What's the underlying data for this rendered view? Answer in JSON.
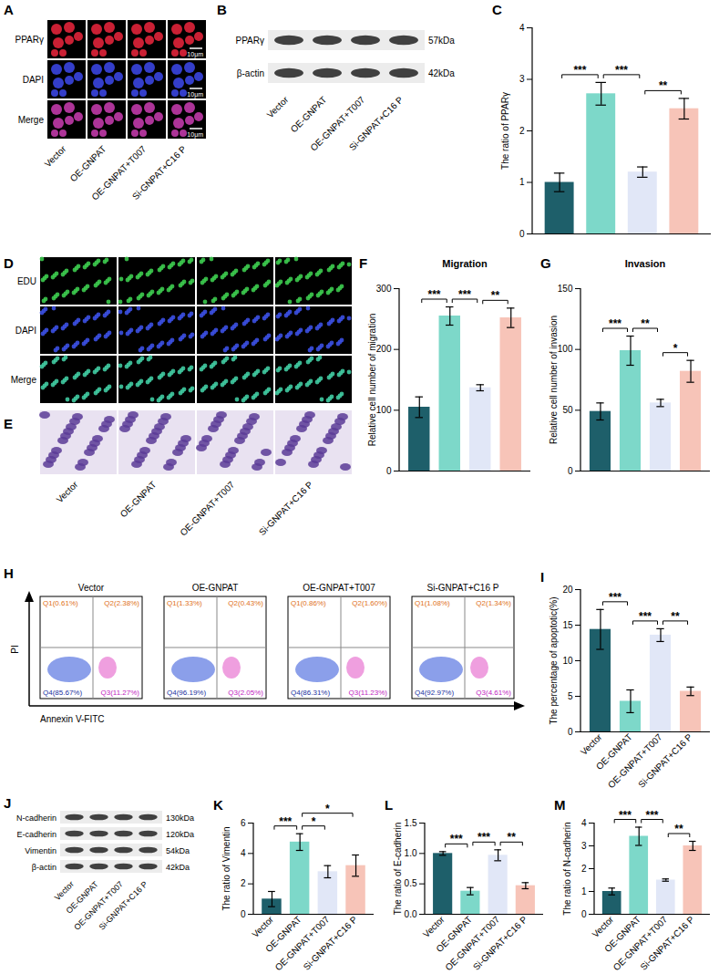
{
  "figure": {
    "groups": [
      "Vector",
      "OE-GNPAT",
      "OE-GNPAT+T007",
      "Si-GNPAT+C16 P"
    ],
    "A": {
      "panel": "A",
      "rows": [
        "PPARγ",
        "DAPI",
        "Merge"
      ],
      "scale_bar": "10μm"
    },
    "B": {
      "panel": "B",
      "blots": [
        {
          "name": "PPARγ",
          "size": "57kDa"
        },
        {
          "name": "β-actin",
          "size": "42kDa"
        }
      ]
    },
    "D": {
      "panel": "D",
      "rows": [
        "EDU",
        "DAPI",
        "Merge"
      ]
    },
    "E": {
      "panel": "E"
    },
    "H": {
      "panel": "H",
      "x_label": "Annexin V-FITC",
      "y_label": "PI",
      "plots": [
        {
          "title": "Vector",
          "quadrants": [
            "Q1(0.61%)",
            "Q2(2.38%)",
            "Q3(11.27%)",
            "Q4(85.67%)"
          ]
        },
        {
          "title": "OE-GNPAT",
          "quadrants": [
            "Q1(1.33%)",
            "Q2(0.43%)",
            "Q3(2.05%)",
            "Q4(96.19%)"
          ]
        },
        {
          "title": "OE-GNPAT+T007",
          "quadrants": [
            "Q1(0.86%)",
            "Q2(1.60%)",
            "Q3(11.23%)",
            "Q4(86.31%)"
          ]
        },
        {
          "title": "Si-GNPAT+C16 P",
          "quadrants": [
            "Q1(1.08%)",
            "Q2(1.34%)",
            "Q3(4.61%)",
            "Q4(92.97%)"
          ]
        }
      ]
    },
    "J": {
      "panel": "J",
      "blots": [
        {
          "name": "N-cadherin",
          "size": "130kDa"
        },
        {
          "name": "E-cadherin",
          "size": "120kDa"
        },
        {
          "name": "Vimentin",
          "size": "54kDa"
        },
        {
          "name": "β-actin",
          "size": "42kDa"
        }
      ]
    }
  },
  "chart_data": [
    {
      "panel": "C",
      "type": "bar",
      "y_label": "The ratio of PPARγ",
      "categories": [
        "Vector",
        "OE-GNPAT",
        "OE-GNPAT+T007",
        "Si-GNPAT+C16 P"
      ],
      "values": [
        1.0,
        2.72,
        1.2,
        2.43
      ],
      "errors": [
        0.18,
        0.22,
        0.1,
        0.2
      ],
      "colors": [
        "#1e5f6a",
        "#7dd8c9",
        "#e1e7f7",
        "#f7c4b8"
      ],
      "ylim": [
        0,
        4
      ],
      "yticks": [
        0,
        1,
        2,
        3,
        4
      ],
      "tick_labels": "y",
      "significance": [
        {
          "groups": [
            "Vector",
            "OE-GNPAT"
          ],
          "label": "***"
        },
        {
          "groups": [
            "OE-GNPAT",
            "OE-GNPAT+T007"
          ],
          "label": "***"
        },
        {
          "groups": [
            "OE-GNPAT+T007",
            "Si-GNPAT+C16 P"
          ],
          "label": "**"
        }
      ]
    },
    {
      "panel": "F",
      "type": "bar",
      "title": "Migration",
      "y_label": "Relative cell number of migration",
      "categories": [
        "Vector",
        "OE-GNPAT",
        "OE-GNPAT+T007",
        "Si-GNPAT+C16 P"
      ],
      "values": [
        105,
        255,
        137,
        252
      ],
      "errors": [
        17,
        15,
        5,
        16
      ],
      "colors": [
        "#1e5f6a",
        "#7dd8c9",
        "#e1e7f7",
        "#f7c4b8"
      ],
      "ylim": [
        0,
        300
      ],
      "yticks": [
        0,
        100,
        200,
        300
      ],
      "tick_labels": "y",
      "significance": [
        {
          "groups": [
            "Vector",
            "OE-GNPAT"
          ],
          "label": "***"
        },
        {
          "groups": [
            "OE-GNPAT",
            "OE-GNPAT+T007"
          ],
          "label": "***"
        },
        {
          "groups": [
            "OE-GNPAT+T007",
            "Si-GNPAT+C16 P"
          ],
          "label": "**"
        }
      ]
    },
    {
      "panel": "G",
      "type": "bar",
      "title": "Invasion",
      "y_label": "Relative cell number of invasion",
      "categories": [
        "Vector",
        "OE-GNPAT",
        "OE-GNPAT+T007",
        "Si-GNPAT+C16 P"
      ],
      "values": [
        49,
        99,
        56,
        82
      ],
      "errors": [
        7,
        12,
        3,
        9
      ],
      "colors": [
        "#1e5f6a",
        "#7dd8c9",
        "#e1e7f7",
        "#f7c4b8"
      ],
      "ylim": [
        0,
        150
      ],
      "yticks": [
        0,
        50,
        100,
        150
      ],
      "tick_labels": "y",
      "significance": [
        {
          "groups": [
            "Vector",
            "OE-GNPAT"
          ],
          "label": "***"
        },
        {
          "groups": [
            "OE-GNPAT",
            "OE-GNPAT+T007"
          ],
          "label": "**"
        },
        {
          "groups": [
            "OE-GNPAT+T007",
            "Si-GNPAT+C16 P"
          ],
          "label": "*"
        }
      ]
    },
    {
      "panel": "I",
      "type": "bar",
      "y_label": "The percentage of apoptotic(%)",
      "categories": [
        "Vector",
        "OE-GNPAT",
        "OE-GNPAT+T007",
        "Si-GNPAT+C16 P"
      ],
      "values": [
        14.4,
        4.3,
        13.6,
        5.7
      ],
      "errors": [
        2.8,
        1.6,
        0.9,
        0.6
      ],
      "colors": [
        "#1e5f6a",
        "#7dd8c9",
        "#e1e7f7",
        "#f7c4b8"
      ],
      "ylim": [
        0,
        20
      ],
      "yticks": [
        0,
        5,
        10,
        15,
        20
      ],
      "significance": [
        {
          "groups": [
            "Vector",
            "OE-GNPAT"
          ],
          "label": "***"
        },
        {
          "groups": [
            "OE-GNPAT",
            "OE-GNPAT+T007"
          ],
          "label": "***"
        },
        {
          "groups": [
            "OE-GNPAT+T007",
            "Si-GNPAT+C16 P"
          ],
          "label": "**"
        }
      ]
    },
    {
      "panel": "K",
      "type": "bar",
      "y_label": "The ratio of Vimentin",
      "categories": [
        "Vector",
        "OE-GNPAT",
        "OE-GNPAT+T007",
        "Si-GNPAT+C16 P"
      ],
      "values": [
        1.0,
        4.75,
        2.8,
        3.2
      ],
      "errors": [
        0.5,
        0.55,
        0.4,
        0.7
      ],
      "colors": [
        "#1e5f6a",
        "#7dd8c9",
        "#e1e7f7",
        "#f7c4b8"
      ],
      "ylim": [
        0,
        6
      ],
      "yticks": [
        0,
        2,
        4,
        6
      ],
      "significance": [
        {
          "groups": [
            "Vector",
            "OE-GNPAT"
          ],
          "label": "***"
        },
        {
          "groups": [
            "OE-GNPAT",
            "OE-GNPAT+T007"
          ],
          "label": "*"
        },
        {
          "groups": [
            "OE-GNPAT",
            "Si-GNPAT+C16 P"
          ],
          "label": "*"
        }
      ]
    },
    {
      "panel": "L",
      "type": "bar",
      "y_label": "The ratio of E-cadherin",
      "categories": [
        "Vector",
        "OE-GNPAT",
        "OE-GNPAT+T007",
        "Si-GNPAT+C16 P"
      ],
      "values": [
        1.0,
        0.38,
        0.97,
        0.47
      ],
      "errors": [
        0.03,
        0.06,
        0.09,
        0.05
      ],
      "colors": [
        "#1e5f6a",
        "#7dd8c9",
        "#e1e7f7",
        "#f7c4b8"
      ],
      "ylim": [
        0,
        1.5
      ],
      "yticks": [
        {
          "value": 0,
          "label": "0.0"
        },
        {
          "value": 0.5,
          "label": "0.5"
        },
        {
          "value": 1,
          "label": "1.0"
        },
        {
          "value": 1.5,
          "label": "1.5"
        }
      ],
      "significance": [
        {
          "groups": [
            "Vector",
            "OE-GNPAT"
          ],
          "label": "***"
        },
        {
          "groups": [
            "OE-GNPAT",
            "OE-GNPAT+T007"
          ],
          "label": "***"
        },
        {
          "groups": [
            "OE-GNPAT+T007",
            "Si-GNPAT+C16 P"
          ],
          "label": "**"
        }
      ]
    },
    {
      "panel": "M",
      "type": "bar",
      "y_label": "The ratio of N-cadherin",
      "categories": [
        "Vector",
        "OE-GNPAT",
        "OE-GNPAT+T007",
        "Si-GNPAT+C16 P"
      ],
      "values": [
        1.0,
        3.42,
        1.5,
        3.0
      ],
      "errors": [
        0.15,
        0.4,
        0.05,
        0.2
      ],
      "colors": [
        "#1e5f6a",
        "#7dd8c9",
        "#e1e7f7",
        "#f7c4b8"
      ],
      "ylim": [
        0,
        4
      ],
      "yticks": [
        0,
        1,
        2,
        3,
        4
      ],
      "significance": [
        {
          "groups": [
            "Vector",
            "OE-GNPAT"
          ],
          "label": "***"
        },
        {
          "groups": [
            "OE-GNPAT",
            "OE-GNPAT+T007"
          ],
          "label": "***"
        },
        {
          "groups": [
            "OE-GNPAT+T007",
            "Si-GNPAT+C16 P"
          ],
          "label": "**"
        }
      ]
    }
  ]
}
